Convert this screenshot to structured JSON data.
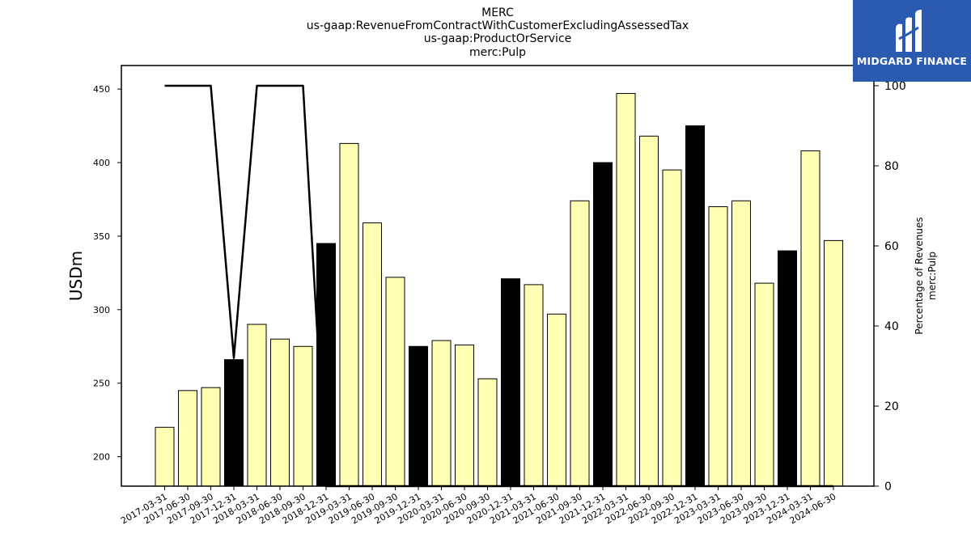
{
  "logo": {
    "text": "MIDGARD FINANCE",
    "icon": "midgard-logo-mark",
    "bg_color": "#2b5bb0"
  },
  "chart_data": {
    "type": "bar",
    "title_lines": [
      "MERC",
      "us-gaap:RevenueFromContractWithCustomerExcludingAssessedTax",
      "us-gaap:ProductOrService",
      "merc:Pulp"
    ],
    "ylabel": "USDm",
    "ylabel_right": [
      "Percentage of Revenues",
      "merc:Pulp"
    ],
    "ylim": [
      180,
      466
    ],
    "ylim_right": [
      0,
      100
    ],
    "yticks": [
      200,
      250,
      300,
      350,
      400,
      450
    ],
    "yticks_right": [
      0,
      20,
      40,
      60,
      80,
      100
    ],
    "grid": false,
    "categories": [
      "2017-03-31",
      "2017-06-30",
      "2017-09-30",
      "2017-12-31",
      "2018-03-31",
      "2018-06-30",
      "2018-09-30",
      "2018-12-31",
      "2019-03-31",
      "2019-06-30",
      "2019-09-30",
      "2019-12-31",
      "2020-03-31",
      "2020-06-30",
      "2020-09-30",
      "2020-12-31",
      "2021-03-31",
      "2021-06-30",
      "2021-09-30",
      "2021-12-31",
      "2022-03-31",
      "2022-06-30",
      "2022-09-30",
      "2022-12-31",
      "2023-03-31",
      "2023-06-30",
      "2023-09-30",
      "2023-12-31",
      "2024-03-31",
      "2024-06-30"
    ],
    "values": [
      220,
      245,
      247,
      266,
      290,
      280,
      275,
      345,
      413,
      359,
      322,
      275,
      279,
      276,
      253,
      321,
      317,
      297,
      374,
      400,
      447,
      418,
      395,
      425,
      370,
      374,
      318,
      340,
      408,
      347
    ],
    "highlight": [
      false,
      false,
      false,
      true,
      false,
      false,
      false,
      true,
      false,
      false,
      false,
      true,
      false,
      false,
      false,
      true,
      false,
      false,
      false,
      true,
      false,
      false,
      false,
      true,
      false,
      false,
      false,
      true,
      false,
      false
    ],
    "bar_color": "#ffffb3",
    "highlight_color": "#000000",
    "line_series": {
      "axis": "right",
      "values": [
        100,
        100,
        100,
        32,
        100,
        100,
        100,
        0,
        0,
        0,
        0,
        0,
        0,
        0,
        0,
        0,
        0,
        0,
        0,
        0,
        0,
        0,
        0,
        0,
        0,
        0,
        0,
        0,
        0,
        0
      ],
      "color": "#000000"
    }
  }
}
